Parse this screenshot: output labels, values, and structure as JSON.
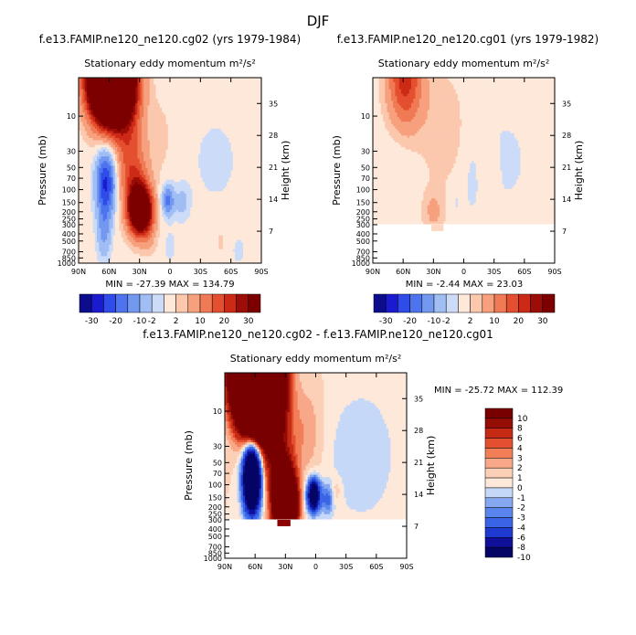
{
  "title": "DJF",
  "chart_data": [
    {
      "type": "heatmap",
      "title": "f.e13.FAMIP.ne120_ne120.cg02 (yrs 1979-1984)",
      "subtitle": "Stationary eddy momentum m²/s²",
      "xlabel": "",
      "ylabel": "Pressure (mb)",
      "ylabel_right": "Height (km)",
      "x_ticks": [
        "90N",
        "60N",
        "30N",
        "0",
        "30S",
        "60S",
        "90S"
      ],
      "y_ticks": [
        "10",
        "30",
        "50",
        "70",
        "100",
        "150",
        "200",
        "250",
        "300",
        "400",
        "500",
        "700",
        "850",
        "1000"
      ],
      "y_ticks_right": [
        "35",
        "28",
        "21",
        "14",
        "7"
      ],
      "min_max": "MIN = -27.39   MAX = 134.79",
      "colorbar_labels": [
        "-30",
        "-20",
        "-10",
        "-2",
        "2",
        "10",
        "20",
        "30"
      ],
      "xlim": [
        "90N",
        "90S"
      ],
      "ylim": [
        1000,
        3
      ],
      "features": [
        {
          "lat": 60,
          "p": 5,
          "value": 100
        },
        {
          "lat": 62,
          "p": 80,
          "value": -22
        },
        {
          "lat": 28,
          "p": 200,
          "value": 50
        },
        {
          "lat": 2,
          "p": 150,
          "value": -15
        }
      ]
    },
    {
      "type": "heatmap",
      "title": "f.e13.FAMIP.ne120_ne120.cg01 (yrs 1979-1982)",
      "subtitle": "Stationary eddy momentum m²/s²",
      "xlabel": "",
      "ylabel": "Pressure (mb)",
      "ylabel_right": "Height (km)",
      "x_ticks": [
        "90N",
        "60N",
        "30N",
        "0",
        "30S",
        "60S",
        "90S"
      ],
      "y_ticks": [
        "10",
        "30",
        "50",
        "70",
        "100",
        "150",
        "200",
        "250",
        "300",
        "400",
        "500",
        "700",
        "850",
        "1000"
      ],
      "y_ticks_right": [
        "35",
        "28",
        "21",
        "14",
        "7"
      ],
      "min_max": "MIN = -2.44   MAX = 23.03",
      "colorbar_labels": [
        "-30",
        "-20",
        "-10",
        "-2",
        "2",
        "10",
        "20",
        "30"
      ],
      "xlim": [
        "90N",
        "90S"
      ],
      "ylim": [
        1000,
        3
      ],
      "features": [
        {
          "lat": 58,
          "p": 5,
          "value": 20
        },
        {
          "lat": 28,
          "p": 200,
          "value": 5
        }
      ]
    },
    {
      "type": "heatmap",
      "title": "f.e13.FAMIP.ne120_ne120.cg02 - f.e13.FAMIP.ne120_ne120.cg01",
      "subtitle": "Stationary eddy momentum m²/s²",
      "xlabel": "",
      "ylabel": "Pressure (mb)",
      "ylabel_right": "Height (km)",
      "x_ticks": [
        "90N",
        "60N",
        "30N",
        "0",
        "30S",
        "60S",
        "90S"
      ],
      "y_ticks": [
        "10",
        "30",
        "50",
        "70",
        "100",
        "150",
        "200",
        "250",
        "300",
        "400",
        "500",
        "700",
        "850",
        "1000"
      ],
      "y_ticks_right": [
        "35",
        "28",
        "21",
        "14",
        "7"
      ],
      "min_max": "MIN = -25.72   MAX = 112.39",
      "colorbar_labels": [
        "10",
        "8",
        "6",
        "4",
        "3",
        "2",
        "1",
        "0",
        "-1",
        "-2",
        "-3",
        "-4",
        "-6",
        "-8",
        "-10"
      ],
      "xlim": [
        "90N",
        "90S"
      ],
      "ylim": [
        1000,
        3
      ],
      "features": [
        {
          "lat": 60,
          "p": 5,
          "value": 90
        },
        {
          "lat": 62,
          "p": 80,
          "value": -20
        },
        {
          "lat": 28,
          "p": 200,
          "value": 45
        },
        {
          "lat": 2,
          "p": 150,
          "value": -15
        }
      ]
    }
  ]
}
